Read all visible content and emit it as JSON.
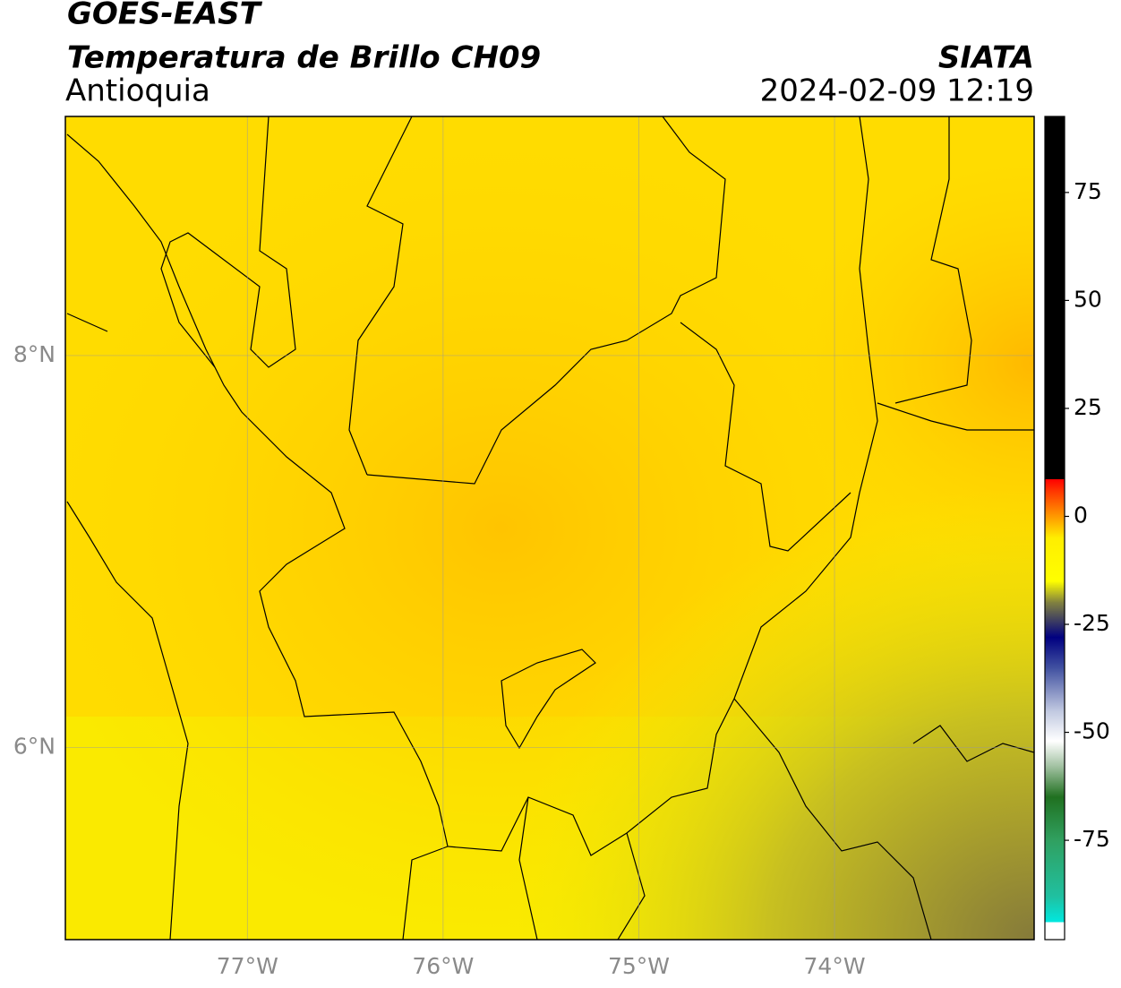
{
  "header": {
    "title": "GOES-EAST",
    "subtitle": "Temperatura de Brillo CH09",
    "region": "Antioquia",
    "source": "SIATA",
    "datetime": "2024-02-09 12:19"
  },
  "map": {
    "xlim": [
      -77.93,
      -72.98
    ],
    "ylim": [
      5.02,
      9.22
    ],
    "xticks": [
      {
        "value": -77,
        "label": "77°W"
      },
      {
        "value": -76,
        "label": "76°W"
      },
      {
        "value": -75,
        "label": "75°W"
      },
      {
        "value": -74,
        "label": "74°W"
      }
    ],
    "yticks": [
      {
        "value": 6,
        "label": "6°N"
      },
      {
        "value": 8,
        "label": "8°N"
      }
    ],
    "grid": true
  },
  "colorbar": {
    "lim": [
      -98,
      92.6
    ],
    "ticks": [
      -75,
      -50,
      -25,
      0,
      25,
      50,
      75
    ],
    "stops": [
      {
        "value": -98,
        "color": "#ffffff"
      },
      {
        "value": -94,
        "color": "#ffffff"
      },
      {
        "value": -94,
        "color": "#00e8e0"
      },
      {
        "value": -88,
        "color": "#20c0a0"
      },
      {
        "value": -75,
        "color": "#30a060"
      },
      {
        "value": -65,
        "color": "#207020"
      },
      {
        "value": -58,
        "color": "#a0c0a0"
      },
      {
        "value": -52,
        "color": "#ffffff"
      },
      {
        "value": -45,
        "color": "#c0c8e0"
      },
      {
        "value": -35,
        "color": "#4050a0"
      },
      {
        "value": -28,
        "color": "#000080"
      },
      {
        "value": -24,
        "color": "#404060"
      },
      {
        "value": -20,
        "color": "#808040"
      },
      {
        "value": -15,
        "color": "#ffff00"
      },
      {
        "value": -5,
        "color": "#ffee00"
      },
      {
        "value": 0,
        "color": "#ff9900"
      },
      {
        "value": 6,
        "color": "#ff3300"
      },
      {
        "value": 8.6,
        "color": "#ff0000"
      },
      {
        "value": 8.6,
        "color": "#000000"
      },
      {
        "value": 92.6,
        "color": "#000000"
      }
    ]
  }
}
